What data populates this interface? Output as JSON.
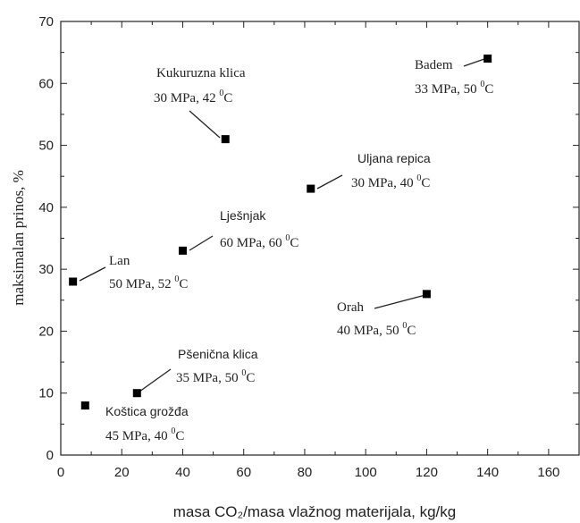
{
  "chart_data": {
    "type": "scatter",
    "xlabel": "masa CO₂/masa vlažnog materijala, kg/kg",
    "ylabel": "maksimalan prinos, %",
    "xlim": [
      0,
      170
    ],
    "ylim": [
      0,
      70
    ],
    "x_ticks": [
      "0",
      "20",
      "40",
      "60",
      "80",
      "100",
      "120",
      "140",
      "160"
    ],
    "y_ticks": [
      "0",
      "10",
      "20",
      "30",
      "40",
      "50",
      "60",
      "70"
    ],
    "grid": false,
    "marker": "square",
    "points": [
      {
        "name": "Kukuruzna klica",
        "x": 54,
        "y": 51,
        "conditions_prefix": "30 MPa, 42 ",
        "temp_unit": "C"
      },
      {
        "name": "Badem",
        "x": 140,
        "y": 64,
        "conditions_prefix": "33 MPa, 50 ",
        "temp_unit": "C"
      },
      {
        "name": "Uljana repica",
        "x": 82,
        "y": 43,
        "conditions_prefix": "30 MPa, 40 ",
        "temp_unit": "C"
      },
      {
        "name": "Lješnjak",
        "x": 40,
        "y": 33,
        "conditions_prefix": "60 MPa, 60 ",
        "temp_unit": "C"
      },
      {
        "name": "Lan",
        "x": 4,
        "y": 28,
        "conditions_prefix": "50 MPa, 52 ",
        "temp_unit": "C"
      },
      {
        "name": "Orah",
        "x": 120,
        "y": 26,
        "conditions_prefix": "40 MPa, 50 ",
        "temp_unit": "C"
      },
      {
        "name": "Pšenična klica",
        "x": 25,
        "y": 10,
        "conditions_prefix": "35 MPa, 50 ",
        "temp_unit": "C"
      },
      {
        "name": "Koštica grožđa",
        "x": 8,
        "y": 8,
        "conditions_prefix": "45 MPa, 40 ",
        "temp_unit": "C"
      }
    ],
    "degree_symbol": "0"
  }
}
